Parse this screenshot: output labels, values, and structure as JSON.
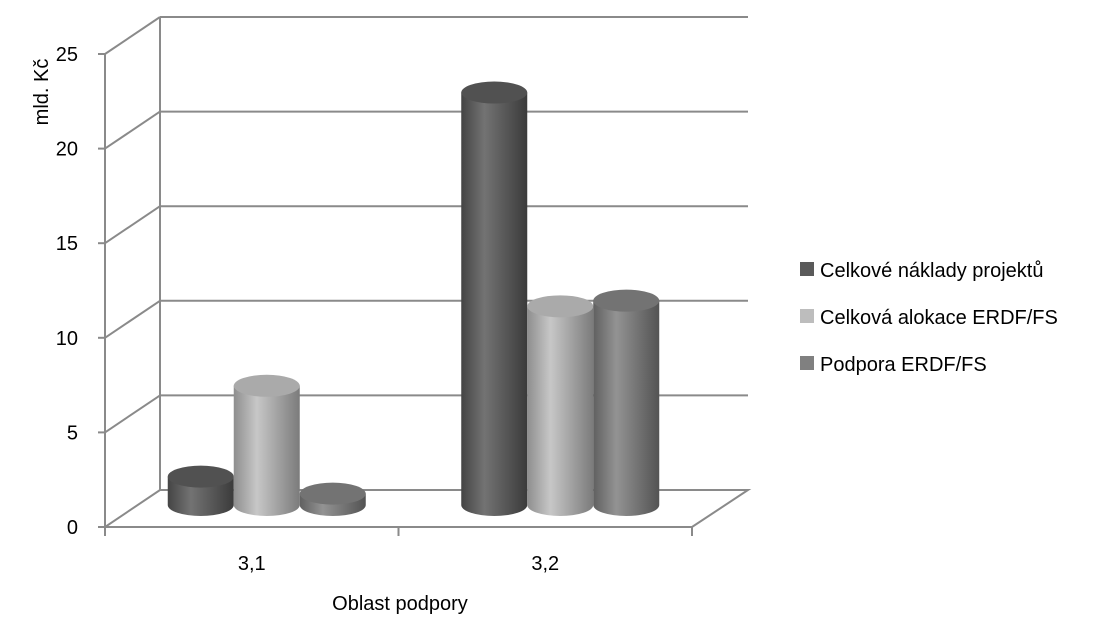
{
  "chart_data": {
    "type": "bar",
    "style": "3d-cylinder",
    "categories": [
      "3,1",
      "3,2"
    ],
    "series": [
      {
        "name": "Celkové náklady projektů",
        "values": [
          1.5,
          21.8
        ],
        "color": "#5a5a5a"
      },
      {
        "name": "Celková alokace ERDF/FS",
        "values": [
          6.3,
          10.5
        ],
        "color": "#bdbdbd"
      },
      {
        "name": "Podpora ERDF/FS",
        "values": [
          0.6,
          10.8
        ],
        "color": "#808080"
      }
    ],
    "xlabel": "Oblast podpory",
    "ylabel": "mld. Kč",
    "ylim": [
      0,
      25
    ],
    "yticks": [
      0,
      5,
      10,
      15,
      20,
      25
    ],
    "grid": true,
    "legend_position": "right"
  }
}
